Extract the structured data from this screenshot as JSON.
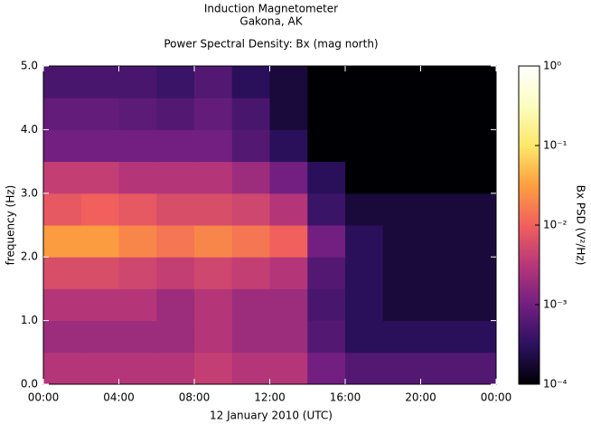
{
  "chart_data": {
    "type": "heatmap",
    "title": [
      "Induction Magnetometer",
      "Gakona, AK"
    ],
    "subtitle": "Power Spectral Density: Bx (mag north)",
    "x_label": "12 January 2010 (UTC)",
    "y_label": "frequency (Hz)",
    "colorbar_label": "Bx PSD (V²/Hz)",
    "x_bins": [
      0,
      2,
      4,
      6,
      8,
      10,
      12,
      14,
      16,
      18,
      20,
      22,
      24
    ],
    "y_bins": [
      0,
      0.5,
      1,
      1.5,
      2,
      2.5,
      3,
      3.5,
      4,
      4.5,
      5
    ],
    "z": [
      [
        0.003,
        0.003,
        0.003,
        0.003,
        0.004,
        0.003,
        0.003,
        0.001,
        0.0006,
        0.0006,
        0.0006,
        0.0006
      ],
      [
        0.002,
        0.002,
        0.002,
        0.002,
        0.003,
        0.002,
        0.002,
        0.0006,
        0.0003,
        0.0003,
        0.0003,
        0.0003
      ],
      [
        0.003,
        0.003,
        0.003,
        0.002,
        0.003,
        0.002,
        0.002,
        0.0005,
        0.0003,
        0.0002,
        0.0002,
        0.0002
      ],
      [
        0.006,
        0.006,
        0.005,
        0.004,
        0.005,
        0.004,
        0.003,
        0.0006,
        0.0003,
        0.0002,
        0.0002,
        0.0002
      ],
      [
        0.03,
        0.03,
        0.02,
        0.015,
        0.02,
        0.015,
        0.01,
        0.001,
        0.0003,
        0.0002,
        0.0002,
        0.0002
      ],
      [
        0.008,
        0.01,
        0.008,
        0.006,
        0.006,
        0.005,
        0.003,
        0.0004,
        0.0002,
        0.0002,
        0.0002,
        0.0002
      ],
      [
        0.004,
        0.004,
        0.003,
        0.003,
        0.003,
        0.002,
        0.001,
        0.0003,
        0.0001,
        0.0001,
        0.0001,
        0.0001
      ],
      [
        0.001,
        0.001,
        0.001,
        0.001,
        0.001,
        0.0006,
        0.0003,
        0.0001,
        0.0001,
        0.0001,
        0.0001,
        0.0001
      ],
      [
        0.0008,
        0.0008,
        0.0007,
        0.0006,
        0.0008,
        0.0005,
        0.0002,
        0.0001,
        0.0001,
        0.0001,
        0.0001,
        0.0001
      ],
      [
        0.0005,
        0.0005,
        0.0005,
        0.0004,
        0.0006,
        0.0003,
        0.0002,
        0.0001,
        0.0001,
        0.0001,
        0.0001,
        0.0001
      ]
    ],
    "xlim": [
      0,
      24
    ],
    "xticks": [
      {
        "value": 0,
        "label": "00:00"
      },
      {
        "value": 4,
        "label": "04:00"
      },
      {
        "value": 8,
        "label": "08:00"
      },
      {
        "value": 12,
        "label": "12:00"
      },
      {
        "value": 16,
        "label": "16:00"
      },
      {
        "value": 20,
        "label": "20:00"
      },
      {
        "value": 24,
        "label": "00:00"
      }
    ],
    "ylim": [
      0,
      5
    ],
    "yticks": [
      {
        "value": 0,
        "label": "0.0"
      },
      {
        "value": 1,
        "label": "1.0"
      },
      {
        "value": 2,
        "label": "2.0"
      },
      {
        "value": 3,
        "label": "3.0"
      },
      {
        "value": 4,
        "label": "4.0"
      },
      {
        "value": 5,
        "label": "5.0"
      }
    ],
    "zlim": [
      0.0001,
      1
    ],
    "zscale": "log",
    "zticks": [
      {
        "value": 0.0001,
        "label": "10⁻⁴"
      },
      {
        "value": 0.001,
        "label": "10⁻³"
      },
      {
        "value": 0.01,
        "label": "10⁻²"
      },
      {
        "value": 0.1,
        "label": "10⁻¹"
      },
      {
        "value": 1,
        "label": "10⁰"
      }
    ],
    "colormap": [
      "#000004",
      "#2c115f",
      "#721f81",
      "#b73779",
      "#f1605d",
      "#fd9f3f",
      "#fce86a",
      "#fcfdbf",
      "#ffffff"
    ]
  }
}
